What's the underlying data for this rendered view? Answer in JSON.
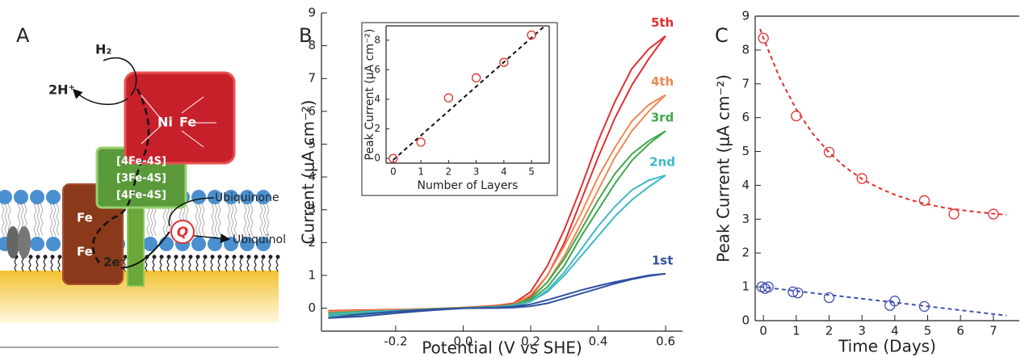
{
  "panel_a": {
    "label": "A",
    "h2": "H₂",
    "protons": "2H⁺",
    "nickel": "Ni",
    "nickel_iron": "Fe",
    "clusters": [
      "[4Fe-4S]",
      "[3Fe-4S]",
      "[4Fe-4S]"
    ],
    "heme_top": "Fe",
    "heme_bottom": "Fe",
    "electrons": "2e⁻",
    "quinone": "Q",
    "ubiquinone": "Ubiquinone",
    "ubiquinol": "Ubiquinol"
  },
  "chart_data": [
    {
      "type": "line",
      "panel_label": "B",
      "x_label": "Potential (V vs SHE)",
      "y_label": "Current (μA cm⁻²)",
      "x": [
        -0.4,
        -0.3,
        -0.25,
        -0.2,
        -0.1,
        0,
        0.1,
        0.15,
        0.2,
        0.25,
        0.3,
        0.35,
        0.4,
        0.45,
        0.5,
        0.55,
        0.6,
        0.55,
        0.5,
        0.45,
        0.4,
        0.35,
        0.3,
        0.25,
        0.2,
        0.15,
        0.1,
        0,
        -0.1,
        -0.2,
        -0.3,
        -0.4
      ],
      "series": [
        {
          "name": "5th",
          "color": "#e03030",
          "values": [
            -0.1,
            -0.08,
            -0.06,
            -0.05,
            -0.03,
            0,
            0.05,
            0.15,
            0.5,
            1.3,
            2.4,
            3.7,
            5.1,
            6.3,
            7.3,
            7.9,
            8.3,
            7.6,
            6.8,
            5.8,
            4.6,
            3.3,
            2.0,
            1.0,
            0.35,
            0.15,
            0.08,
            0.02,
            -0.02,
            -0.04,
            -0.06,
            -0.08
          ]
        },
        {
          "name": "4th",
          "color": "#f08850",
          "values": [
            -0.15,
            -0.12,
            -0.1,
            -0.08,
            -0.04,
            0,
            0.04,
            0.12,
            0.4,
            1.0,
            1.9,
            2.9,
            4.0,
            4.9,
            5.7,
            6.2,
            6.5,
            6.0,
            5.4,
            4.6,
            3.6,
            2.6,
            1.6,
            0.8,
            0.3,
            0.12,
            0.06,
            0.02,
            -0.02,
            -0.05,
            -0.08,
            -0.1
          ]
        },
        {
          "name": "3rd",
          "color": "#40a84a",
          "values": [
            -0.2,
            -0.16,
            -0.12,
            -0.1,
            -0.05,
            0,
            0.03,
            0.1,
            0.3,
            0.8,
            1.5,
            2.4,
            3.3,
            4.1,
            4.7,
            5.1,
            5.4,
            5.0,
            4.5,
            3.8,
            3.0,
            2.2,
            1.3,
            0.65,
            0.25,
            0.1,
            0.05,
            0.01,
            -0.03,
            -0.07,
            -0.1,
            -0.15
          ]
        },
        {
          "name": "2nd",
          "color": "#40b8c8",
          "values": [
            -0.25,
            -0.2,
            -0.15,
            -0.12,
            -0.06,
            0,
            0.02,
            0.06,
            0.2,
            0.55,
            1.1,
            1.8,
            2.5,
            3.1,
            3.6,
            3.9,
            4.05,
            3.7,
            3.3,
            2.8,
            2.2,
            1.6,
            1.0,
            0.5,
            0.2,
            0.08,
            0.03,
            0,
            -0.04,
            -0.08,
            -0.12,
            -0.18
          ]
        },
        {
          "name": "1st",
          "color": "#3050a0",
          "values": [
            -0.3,
            -0.25,
            -0.2,
            -0.15,
            -0.07,
            0,
            0.005,
            0.02,
            0.06,
            0.15,
            0.3,
            0.45,
            0.6,
            0.75,
            0.88,
            0.98,
            1.05,
            1.0,
            0.9,
            0.8,
            0.68,
            0.55,
            0.4,
            0.25,
            0.12,
            0.05,
            0.02,
            0,
            -0.04,
            -0.1,
            -0.18,
            -0.3
          ]
        }
      ],
      "xlim": [
        -0.42,
        0.65
      ],
      "ylim": [
        -0.7,
        9
      ],
      "xticks": [
        -0.2,
        {
          "value": 0,
          "label": "0.0"
        },
        0.2,
        0.4,
        0.6
      ],
      "yticks": [
        0,
        1,
        2,
        3,
        4,
        5,
        6,
        7,
        8,
        9
      ]
    },
    {
      "type": "scatter",
      "x_label": "Number of Layers",
      "y_label": "Peak Current (μA cm⁻²)",
      "series": [
        {
          "color": "#e03030",
          "x": [
            0,
            1,
            2,
            3,
            4,
            5
          ],
          "values": [
            0,
            1.1,
            4.1,
            5.45,
            6.5,
            8.35
          ],
          "fit": {
            "color": "#111111",
            "x": [
              0,
              5.5
            ],
            "values": [
              -0.1,
              9
            ]
          }
        }
      ],
      "xlim": [
        -0.26,
        5.64
      ],
      "ylim": [
        -0.32,
        8.97
      ],
      "xticks": [
        0,
        1,
        2,
        3,
        4,
        5
      ],
      "yticks": [
        0,
        2,
        4,
        6,
        8
      ]
    },
    {
      "type": "scatter",
      "panel_label": "C",
      "x_label": "Time (Days)",
      "y_label": "Peak Current (μA cm⁻²)",
      "series": [
        {
          "color": "#e03030",
          "x": [
            0,
            1,
            2,
            3,
            4.9,
            5.8,
            7
          ],
          "values": [
            8.35,
            6.05,
            4.98,
            4.2,
            3.55,
            3.15,
            3.15
          ],
          "fit": {
            "color": "#e03030",
            "x": [
              -0.1,
              0,
              0.5,
              1,
              1.5,
              2,
              2.5,
              3,
              3.5,
              4,
              4.5,
              5,
              5.5,
              6,
              6.5,
              7,
              7.4
            ],
            "values": [
              8.62,
              8.35,
              7.17,
              6.25,
              5.53,
              4.97,
              4.53,
              4.19,
              3.93,
              3.72,
              3.56,
              3.44,
              3.34,
              3.27,
              3.21,
              3.16,
              3.13
            ]
          }
        },
        {
          "color": "#4050b0",
          "x": [
            -0.05,
            0.05,
            0.15,
            0.9,
            1.05,
            2,
            3.85,
            4.0,
            4.9
          ],
          "values": [
            1.0,
            0.95,
            1.0,
            0.85,
            0.82,
            0.68,
            0.45,
            0.58,
            0.42
          ],
          "fit": {
            "color": "#4050b0",
            "x": [
              -0.1,
              7.4
            ],
            "values": [
              1.0,
              0.15
            ]
          }
        }
      ],
      "xlim": [
        -0.25,
        7.79
      ],
      "ylim": [
        0,
        9
      ],
      "xticks": [
        0,
        1,
        2,
        3,
        4,
        5,
        6,
        7
      ],
      "yticks": [
        0,
        1,
        2,
        3,
        4,
        5,
        6,
        7,
        8,
        9
      ]
    }
  ]
}
